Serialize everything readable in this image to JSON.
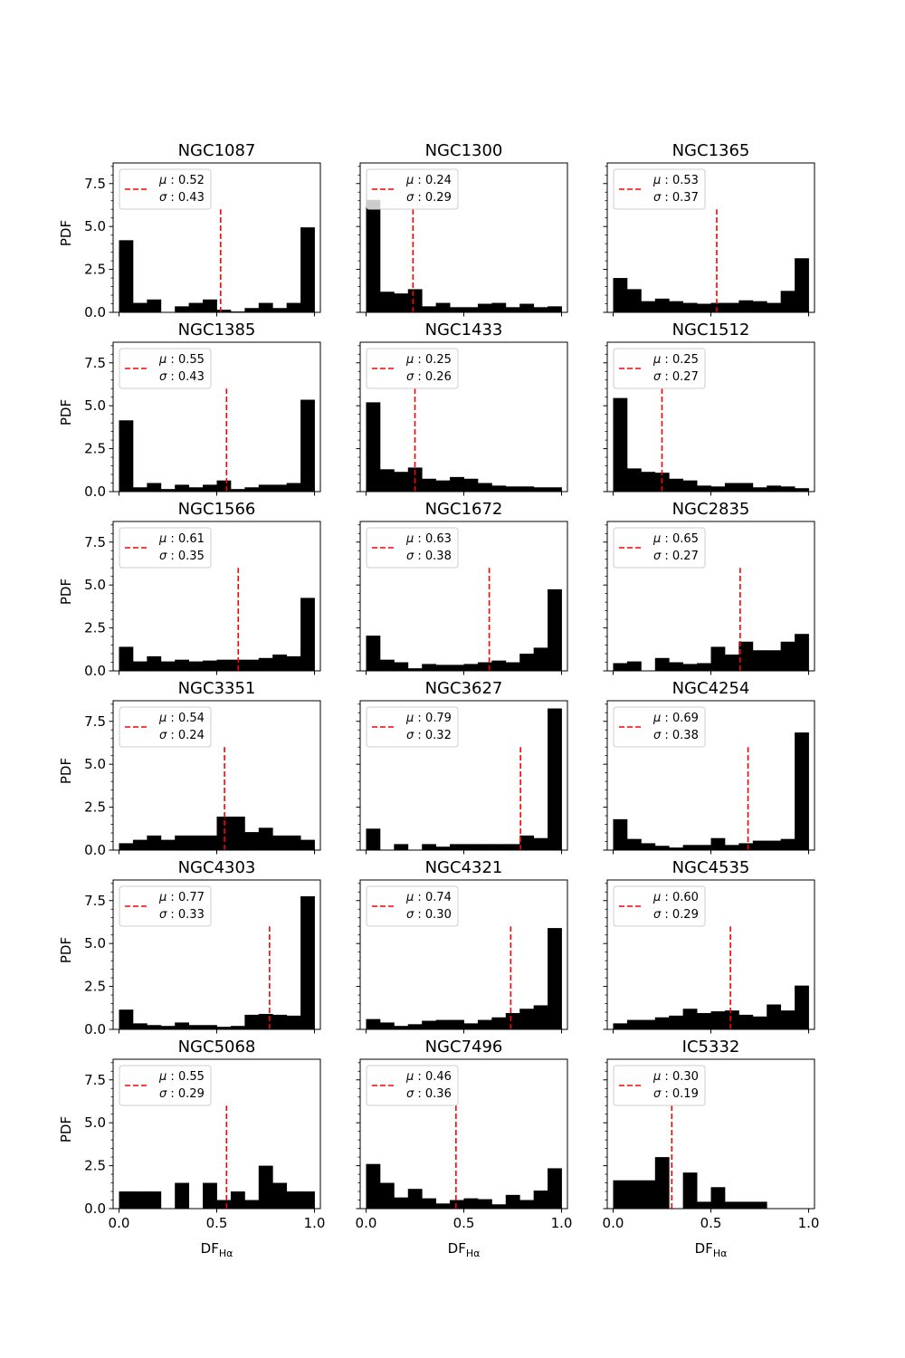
{
  "chart_data": {
    "type": "histogram-grid",
    "rows": 6,
    "cols": 3,
    "xlim": [
      -0.03,
      1.03
    ],
    "ylim": [
      0,
      8.7
    ],
    "xticks": [
      0.0,
      0.5,
      1.0
    ],
    "yticks": [
      0.0,
      2.5,
      5.0,
      7.5
    ],
    "xtick_labels": [
      "0.0",
      "0.5",
      "1.0"
    ],
    "ytick_labels": [
      "0.0",
      "2.5",
      "5.0",
      "7.5"
    ],
    "ylabel": "PDF",
    "xlabel_main": "DF",
    "xlabel_sub": "Hα",
    "bin_edges": [
      0.0,
      0.0714,
      0.1429,
      0.2143,
      0.2857,
      0.3571,
      0.4286,
      0.5,
      0.5714,
      0.6429,
      0.7143,
      0.7857,
      0.8571,
      0.9286,
      1.0
    ],
    "mean_line_height": 6.0,
    "colors": {
      "bars": "#000000",
      "mean_line": "#ff0000",
      "legend_border": "#cccccc"
    },
    "panels": [
      {
        "title": "NGC1087",
        "mu": "0.52",
        "sigma": "0.43",
        "mean": 0.52,
        "values": [
          4.2,
          0.55,
          0.75,
          0.0,
          0.35,
          0.55,
          0.75,
          0.15,
          0.05,
          0.25,
          0.55,
          0.25,
          0.55,
          4.95
        ]
      },
      {
        "title": "NGC1300",
        "mu": "0.24",
        "sigma": "0.29",
        "mean": 0.24,
        "values": [
          6.55,
          1.2,
          1.1,
          1.35,
          0.35,
          0.55,
          0.3,
          0.3,
          0.5,
          0.55,
          0.3,
          0.5,
          0.3,
          0.35
        ]
      },
      {
        "title": "NGC1365",
        "mu": "0.53",
        "sigma": "0.37",
        "mean": 0.53,
        "values": [
          2.0,
          1.35,
          0.65,
          0.8,
          0.65,
          0.55,
          0.5,
          0.55,
          0.55,
          0.7,
          0.65,
          0.55,
          1.25,
          3.15
        ]
      },
      {
        "title": "NGC1385",
        "mu": "0.55",
        "sigma": "0.43",
        "mean": 0.55,
        "values": [
          4.15,
          0.25,
          0.5,
          0.15,
          0.4,
          0.25,
          0.4,
          0.65,
          0.15,
          0.25,
          0.4,
          0.4,
          0.5,
          5.35
        ]
      },
      {
        "title": "NGC1433",
        "mu": "0.25",
        "sigma": "0.26",
        "mean": 0.25,
        "values": [
          5.2,
          1.3,
          1.15,
          1.4,
          0.75,
          0.65,
          0.85,
          0.75,
          0.5,
          0.35,
          0.3,
          0.3,
          0.25,
          0.25
        ]
      },
      {
        "title": "NGC1512",
        "mu": "0.25",
        "sigma": "0.27",
        "mean": 0.25,
        "values": [
          5.45,
          1.35,
          1.15,
          1.1,
          0.75,
          0.65,
          0.35,
          0.3,
          0.5,
          0.5,
          0.25,
          0.35,
          0.3,
          0.2
        ]
      },
      {
        "title": "NGC1566",
        "mu": "0.61",
        "sigma": "0.35",
        "mean": 0.61,
        "values": [
          1.4,
          0.55,
          0.85,
          0.55,
          0.65,
          0.55,
          0.6,
          0.65,
          0.65,
          0.65,
          0.75,
          0.95,
          0.85,
          4.25
        ]
      },
      {
        "title": "NGC1672",
        "mu": "0.63",
        "sigma": "0.38",
        "mean": 0.63,
        "values": [
          2.05,
          0.65,
          0.5,
          0.15,
          0.4,
          0.35,
          0.35,
          0.4,
          0.5,
          0.6,
          0.5,
          1.0,
          1.35,
          4.75
        ]
      },
      {
        "title": "NGC2835",
        "mu": "0.65",
        "sigma": "0.27",
        "mean": 0.65,
        "values": [
          0.45,
          0.55,
          0.0,
          0.75,
          0.5,
          0.4,
          0.45,
          1.4,
          0.95,
          1.7,
          1.2,
          1.2,
          1.7,
          2.15
        ]
      },
      {
        "title": "NGC3351",
        "mu": "0.54",
        "sigma": "0.24",
        "mean": 0.54,
        "values": [
          0.4,
          0.6,
          0.85,
          0.6,
          0.85,
          0.85,
          0.85,
          1.95,
          1.95,
          1.05,
          1.3,
          0.85,
          0.85,
          0.6
        ]
      },
      {
        "title": "NGC3627",
        "mu": "0.79",
        "sigma": "0.32",
        "mean": 0.79,
        "values": [
          1.25,
          0.0,
          0.35,
          0.0,
          0.35,
          0.2,
          0.35,
          0.35,
          0.35,
          0.35,
          0.35,
          0.85,
          0.7,
          8.25
        ]
      },
      {
        "title": "NGC4254",
        "mu": "0.69",
        "sigma": "0.38",
        "mean": 0.69,
        "values": [
          1.8,
          0.65,
          0.4,
          0.25,
          0.15,
          0.3,
          0.3,
          0.7,
          0.3,
          0.4,
          0.55,
          0.55,
          0.65,
          6.85
        ]
      },
      {
        "title": "NGC4303",
        "mu": "0.77",
        "sigma": "0.33",
        "mean": 0.77,
        "values": [
          1.15,
          0.35,
          0.25,
          0.2,
          0.4,
          0.25,
          0.25,
          0.15,
          0.2,
          0.85,
          0.9,
          0.85,
          0.8,
          7.75
        ]
      },
      {
        "title": "NGC4321",
        "mu": "0.74",
        "sigma": "0.30",
        "mean": 0.74,
        "values": [
          0.6,
          0.4,
          0.2,
          0.3,
          0.5,
          0.55,
          0.55,
          0.35,
          0.55,
          0.7,
          0.95,
          1.2,
          1.4,
          5.9
        ]
      },
      {
        "title": "NGC4535",
        "mu": "0.60",
        "sigma": "0.29",
        "mean": 0.6,
        "values": [
          0.35,
          0.55,
          0.55,
          0.7,
          0.8,
          1.2,
          0.95,
          1.05,
          1.1,
          0.85,
          0.75,
          1.45,
          1.1,
          2.55
        ]
      },
      {
        "title": "NGC5068",
        "mu": "0.55",
        "sigma": "0.29",
        "mean": 0.55,
        "values": [
          1.0,
          1.0,
          1.0,
          0.0,
          1.5,
          0.0,
          1.5,
          0.5,
          1.0,
          0.5,
          2.5,
          1.5,
          1.0,
          1.0
        ]
      },
      {
        "title": "NGC7496",
        "mu": "0.46",
        "sigma": "0.36",
        "mean": 0.46,
        "values": [
          2.6,
          1.5,
          0.65,
          1.15,
          0.6,
          0.3,
          0.5,
          0.6,
          0.55,
          0.25,
          0.8,
          0.5,
          1.05,
          2.35
        ]
      },
      {
        "title": "IC5332",
        "mu": "0.30",
        "sigma": "0.19",
        "mean": 0.3,
        "values": [
          1.65,
          1.65,
          1.65,
          3.0,
          0.0,
          2.1,
          0.4,
          1.25,
          0.4,
          0.4,
          0.4,
          0.0,
          0.0,
          0.0
        ]
      }
    ]
  }
}
